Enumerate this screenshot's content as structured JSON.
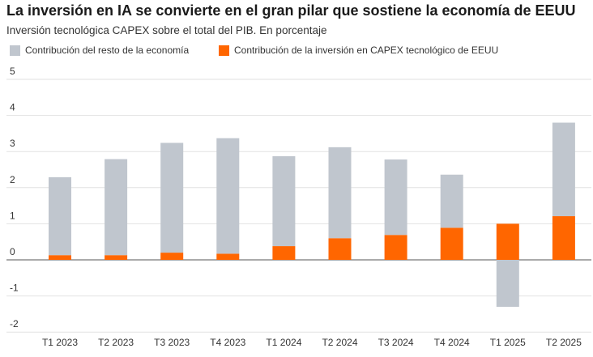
{
  "chart_data": {
    "type": "bar",
    "stacked": true,
    "title": "La inversión en IA se convierte en el gran pilar que sostiene la economía de EEUU",
    "subtitle": "Inversión tecnológica CAPEX sobre el total del PIB. En porcentaje",
    "categories": [
      "T1 2023",
      "T2 2023",
      "T3 2023",
      "T4 2023",
      "T1 2024",
      "T2 2024",
      "T3 2024",
      "T4 2024",
      "T1 2025",
      "T2 2025"
    ],
    "series": [
      {
        "name": "Contribución del resto de la economía",
        "color": "#c0c6ce",
        "values": [
          2.16,
          2.66,
          3.04,
          3.2,
          2.49,
          2.52,
          2.09,
          1.47,
          -1.3,
          2.59
        ]
      },
      {
        "name": "Contribución de la inversión en CAPEX tecnológico de EEUU",
        "color": "#ff6600",
        "values": [
          0.13,
          0.13,
          0.2,
          0.17,
          0.38,
          0.6,
          0.69,
          0.89,
          1.0,
          1.21
        ]
      }
    ],
    "ylim": [
      -2,
      5
    ],
    "yticks": [
      5,
      4,
      3,
      2,
      1,
      0,
      -1,
      -2
    ],
    "grid": true,
    "legend_position": "top-left"
  }
}
